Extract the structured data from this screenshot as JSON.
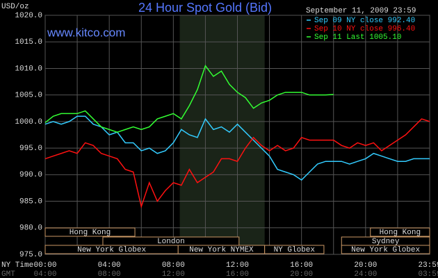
{
  "chart_data": {
    "type": "line",
    "title": "24 Hour Spot Gold (Bid)",
    "y_label": "USD/oz",
    "watermark": "www.kitco.com",
    "timestamp": "September 11, 2009 23:59",
    "x_label": "NY Time",
    "x2_label": "GMT",
    "x": [
      0,
      0.5,
      1,
      1.5,
      2,
      2.5,
      3,
      3.5,
      4,
      4.5,
      5,
      5.5,
      6,
      6.5,
      7,
      7.5,
      8,
      8.5,
      9,
      9.5,
      10,
      10.5,
      11,
      11.5,
      12,
      12.5,
      13,
      13.5,
      14,
      14.5,
      15,
      15.5,
      16,
      16.5,
      17,
      17.5,
      18,
      18.5,
      19,
      19.5,
      20,
      20.5,
      21,
      21.5,
      22,
      22.5,
      23,
      23.5,
      24
    ],
    "series": [
      {
        "name": "Sep 09 NY close 992.40",
        "color": "#33ccff",
        "values": [
          999.5,
          1000,
          999.5,
          1000,
          1001,
          1001,
          999.5,
          999,
          997.5,
          998,
          996,
          996,
          994.5,
          995,
          994,
          994.5,
          996,
          998.5,
          997.5,
          997,
          1000.5,
          998.5,
          999,
          998,
          999.5,
          998,
          996.5,
          995,
          993.5,
          991,
          990.5,
          990,
          989,
          990.5,
          992,
          992.5,
          992.5,
          992.5,
          992,
          992.5,
          993,
          994,
          993.5,
          993,
          992.5,
          992.5,
          993,
          993,
          993
        ]
      },
      {
        "name": "Sep 10 NY close 996.40",
        "color": "#ff1111",
        "values": [
          993,
          993.5,
          994,
          994.5,
          994,
          996,
          995.5,
          994,
          993.5,
          993,
          991,
          990.5,
          984,
          988.5,
          985,
          987,
          988.5,
          988,
          991,
          988.5,
          989.5,
          990.5,
          993,
          993,
          992.5,
          995,
          997,
          995.5,
          994.5,
          995.5,
          994.5,
          995,
          997,
          996.5,
          996.5,
          996.5,
          996.5,
          995.5,
          995,
          996,
          995.5,
          996,
          994.5,
          995.5,
          996.5,
          997.5,
          999,
          1000.5,
          1000
        ]
      },
      {
        "name": "Sep 11 Last 1005.10",
        "color": "#33ff33",
        "values": [
          999.8,
          1001,
          1001.5,
          1001.5,
          1001.5,
          1002,
          1000.5,
          999,
          998.5,
          998,
          998.5,
          999,
          998.5,
          999,
          1000.5,
          1001,
          1001.5,
          1000.5,
          1003,
          1006,
          1010.5,
          1008.5,
          1009.5,
          1007,
          1005.5,
          1004.5,
          1002.5,
          1003.5,
          1004,
          1005,
          1005.5,
          1005.5,
          1005.5,
          1005,
          1005,
          1005,
          1005.1,
          null,
          null,
          null,
          null,
          null,
          null,
          null,
          null,
          null,
          null,
          null,
          null
        ]
      }
    ],
    "xlim": [
      0,
      24
    ],
    "ylim": [
      975,
      1020
    ],
    "yticks": [
      {
        "value": 975,
        "label": "975.0"
      },
      {
        "value": 980,
        "label": "980.0"
      },
      {
        "value": 985,
        "label": "985.0"
      },
      {
        "value": 990,
        "label": "990.0"
      },
      {
        "value": 995,
        "label": "995.0"
      },
      {
        "value": 1000,
        "label": "1000.0"
      },
      {
        "value": 1005,
        "label": "1005.0"
      },
      {
        "value": 1010,
        "label": "1010.0"
      },
      {
        "value": 1015,
        "label": "1015.0"
      },
      {
        "value": 1020,
        "label": "1020.0"
      }
    ],
    "xticks": [
      {
        "value": 0,
        "label": "00:00"
      },
      {
        "value": 4,
        "label": "04:00"
      },
      {
        "value": 8,
        "label": "08:00"
      },
      {
        "value": 12,
        "label": "12:00"
      },
      {
        "value": 16,
        "label": "16:00"
      },
      {
        "value": 20,
        "label": "20:00"
      },
      {
        "value": 24,
        "label": "23:59"
      }
    ],
    "x2ticks": [
      {
        "value": 0,
        "label": "04:00"
      },
      {
        "value": 4,
        "label": "08:00"
      },
      {
        "value": 8,
        "label": "12:00"
      },
      {
        "value": 12,
        "label": "16:00"
      },
      {
        "value": 16,
        "label": "20:00"
      },
      {
        "value": 20,
        "label": "24:00"
      },
      {
        "value": 24,
        "label": "03:59"
      }
    ],
    "xgrid": [
      2,
      6,
      10,
      14,
      18,
      22
    ],
    "grid": true,
    "highlight": [
      8.4,
      13.7
    ],
    "sessions": [
      {
        "name": "Hong Kong",
        "start": 0,
        "end": 5.6,
        "row": 0
      },
      {
        "name": "Hong Kong",
        "start": 20.3,
        "end": 24,
        "row": 0
      },
      {
        "name": "London",
        "start": 3.6,
        "end": 12.1,
        "row": 1
      },
      {
        "name": "Sydney",
        "start": 18.5,
        "end": 24,
        "row": 1
      },
      {
        "name": "New York Globex",
        "start": 0,
        "end": 8.3,
        "row": 2
      },
      {
        "name": "New York NYMEX",
        "start": 8.3,
        "end": 13.7,
        "row": 2
      },
      {
        "name": "NY Globex",
        "start": 13.7,
        "end": 17.4,
        "row": 2
      },
      {
        "name": "New York Globex",
        "start": 18.5,
        "end": 24,
        "row": 2
      }
    ]
  }
}
